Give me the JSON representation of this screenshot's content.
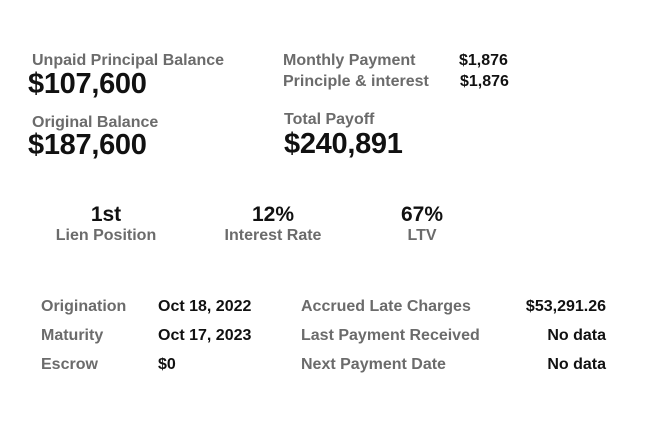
{
  "balances": {
    "upb_label": "Unpaid Principal Balance",
    "upb_value": "$107,600",
    "original_label": "Original Balance",
    "original_value": "$187,600"
  },
  "payment": {
    "monthly_label": "Monthly Payment",
    "monthly_value": "$1,876",
    "pi_label": "Principle & interest",
    "pi_value": "$1,876",
    "payoff_label": "Total Payoff",
    "payoff_value": "$240,891"
  },
  "stats": [
    {
      "value": "1st",
      "label": "Lien Position"
    },
    {
      "value": "12%",
      "label": "Interest Rate"
    },
    {
      "value": "67%",
      "label": "LTV"
    }
  ],
  "details_left": [
    {
      "label": "Origination",
      "value": "Oct 18, 2022"
    },
    {
      "label": "Maturity",
      "value": "Oct 17, 2023"
    },
    {
      "label": "Escrow",
      "value": "$0"
    }
  ],
  "details_right": [
    {
      "label": "Accrued Late Charges",
      "value": "$53,291.26"
    },
    {
      "label": "Last Payment Received",
      "value": "No data"
    },
    {
      "label": "Next Payment Date",
      "value": "No data"
    }
  ]
}
